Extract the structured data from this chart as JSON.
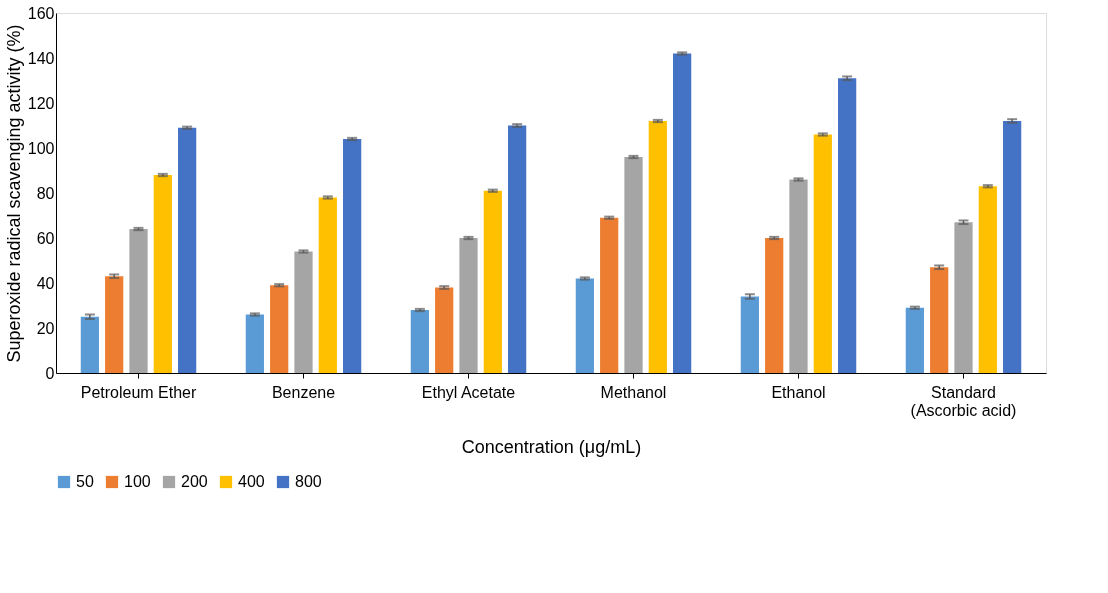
{
  "chart_data": {
    "type": "bar",
    "xlabel": "Concentration (μg/mL)",
    "ylabel": "Superoxide radical scavenging activity (%)",
    "categories": [
      "Petroleum Ether",
      "Benzene",
      "Ethyl Acetate",
      "Methanol",
      "Ethanol",
      "Standard\n(Ascorbic acid)"
    ],
    "series": [
      {
        "name": "50",
        "color": "#5b9bd5",
        "values": [
          25,
          26,
          28,
          42,
          34,
          29
        ],
        "errors": [
          1,
          0.5,
          0.5,
          0.5,
          1,
          0.5
        ]
      },
      {
        "name": "100",
        "color": "#ed7d31",
        "values": [
          43,
          39,
          38,
          69,
          60,
          47
        ],
        "errors": [
          0.8,
          0.5,
          0.6,
          0.5,
          0.5,
          0.8
        ]
      },
      {
        "name": "200",
        "color": "#a5a5a5",
        "values": [
          64,
          54,
          60,
          96,
          86,
          67
        ],
        "errors": [
          0.5,
          0.5,
          0.5,
          0.5,
          0.5,
          0.8
        ]
      },
      {
        "name": "400",
        "color": "#ffc000",
        "values": [
          88,
          78,
          81,
          112,
          106,
          83
        ],
        "errors": [
          0.5,
          0.5,
          0.5,
          0.5,
          0.5,
          0.5
        ]
      },
      {
        "name": "800",
        "color": "#4472c4",
        "values": [
          109,
          104,
          110,
          142,
          131,
          112
        ],
        "errors": [
          0.5,
          0.5,
          0.6,
          0.5,
          0.8,
          0.8
        ]
      }
    ],
    "ylim": [
      0,
      160
    ],
    "yticks": [
      0,
      20,
      40,
      60,
      80,
      100,
      120,
      140,
      160
    ],
    "grid": false,
    "legend": "bottom"
  }
}
